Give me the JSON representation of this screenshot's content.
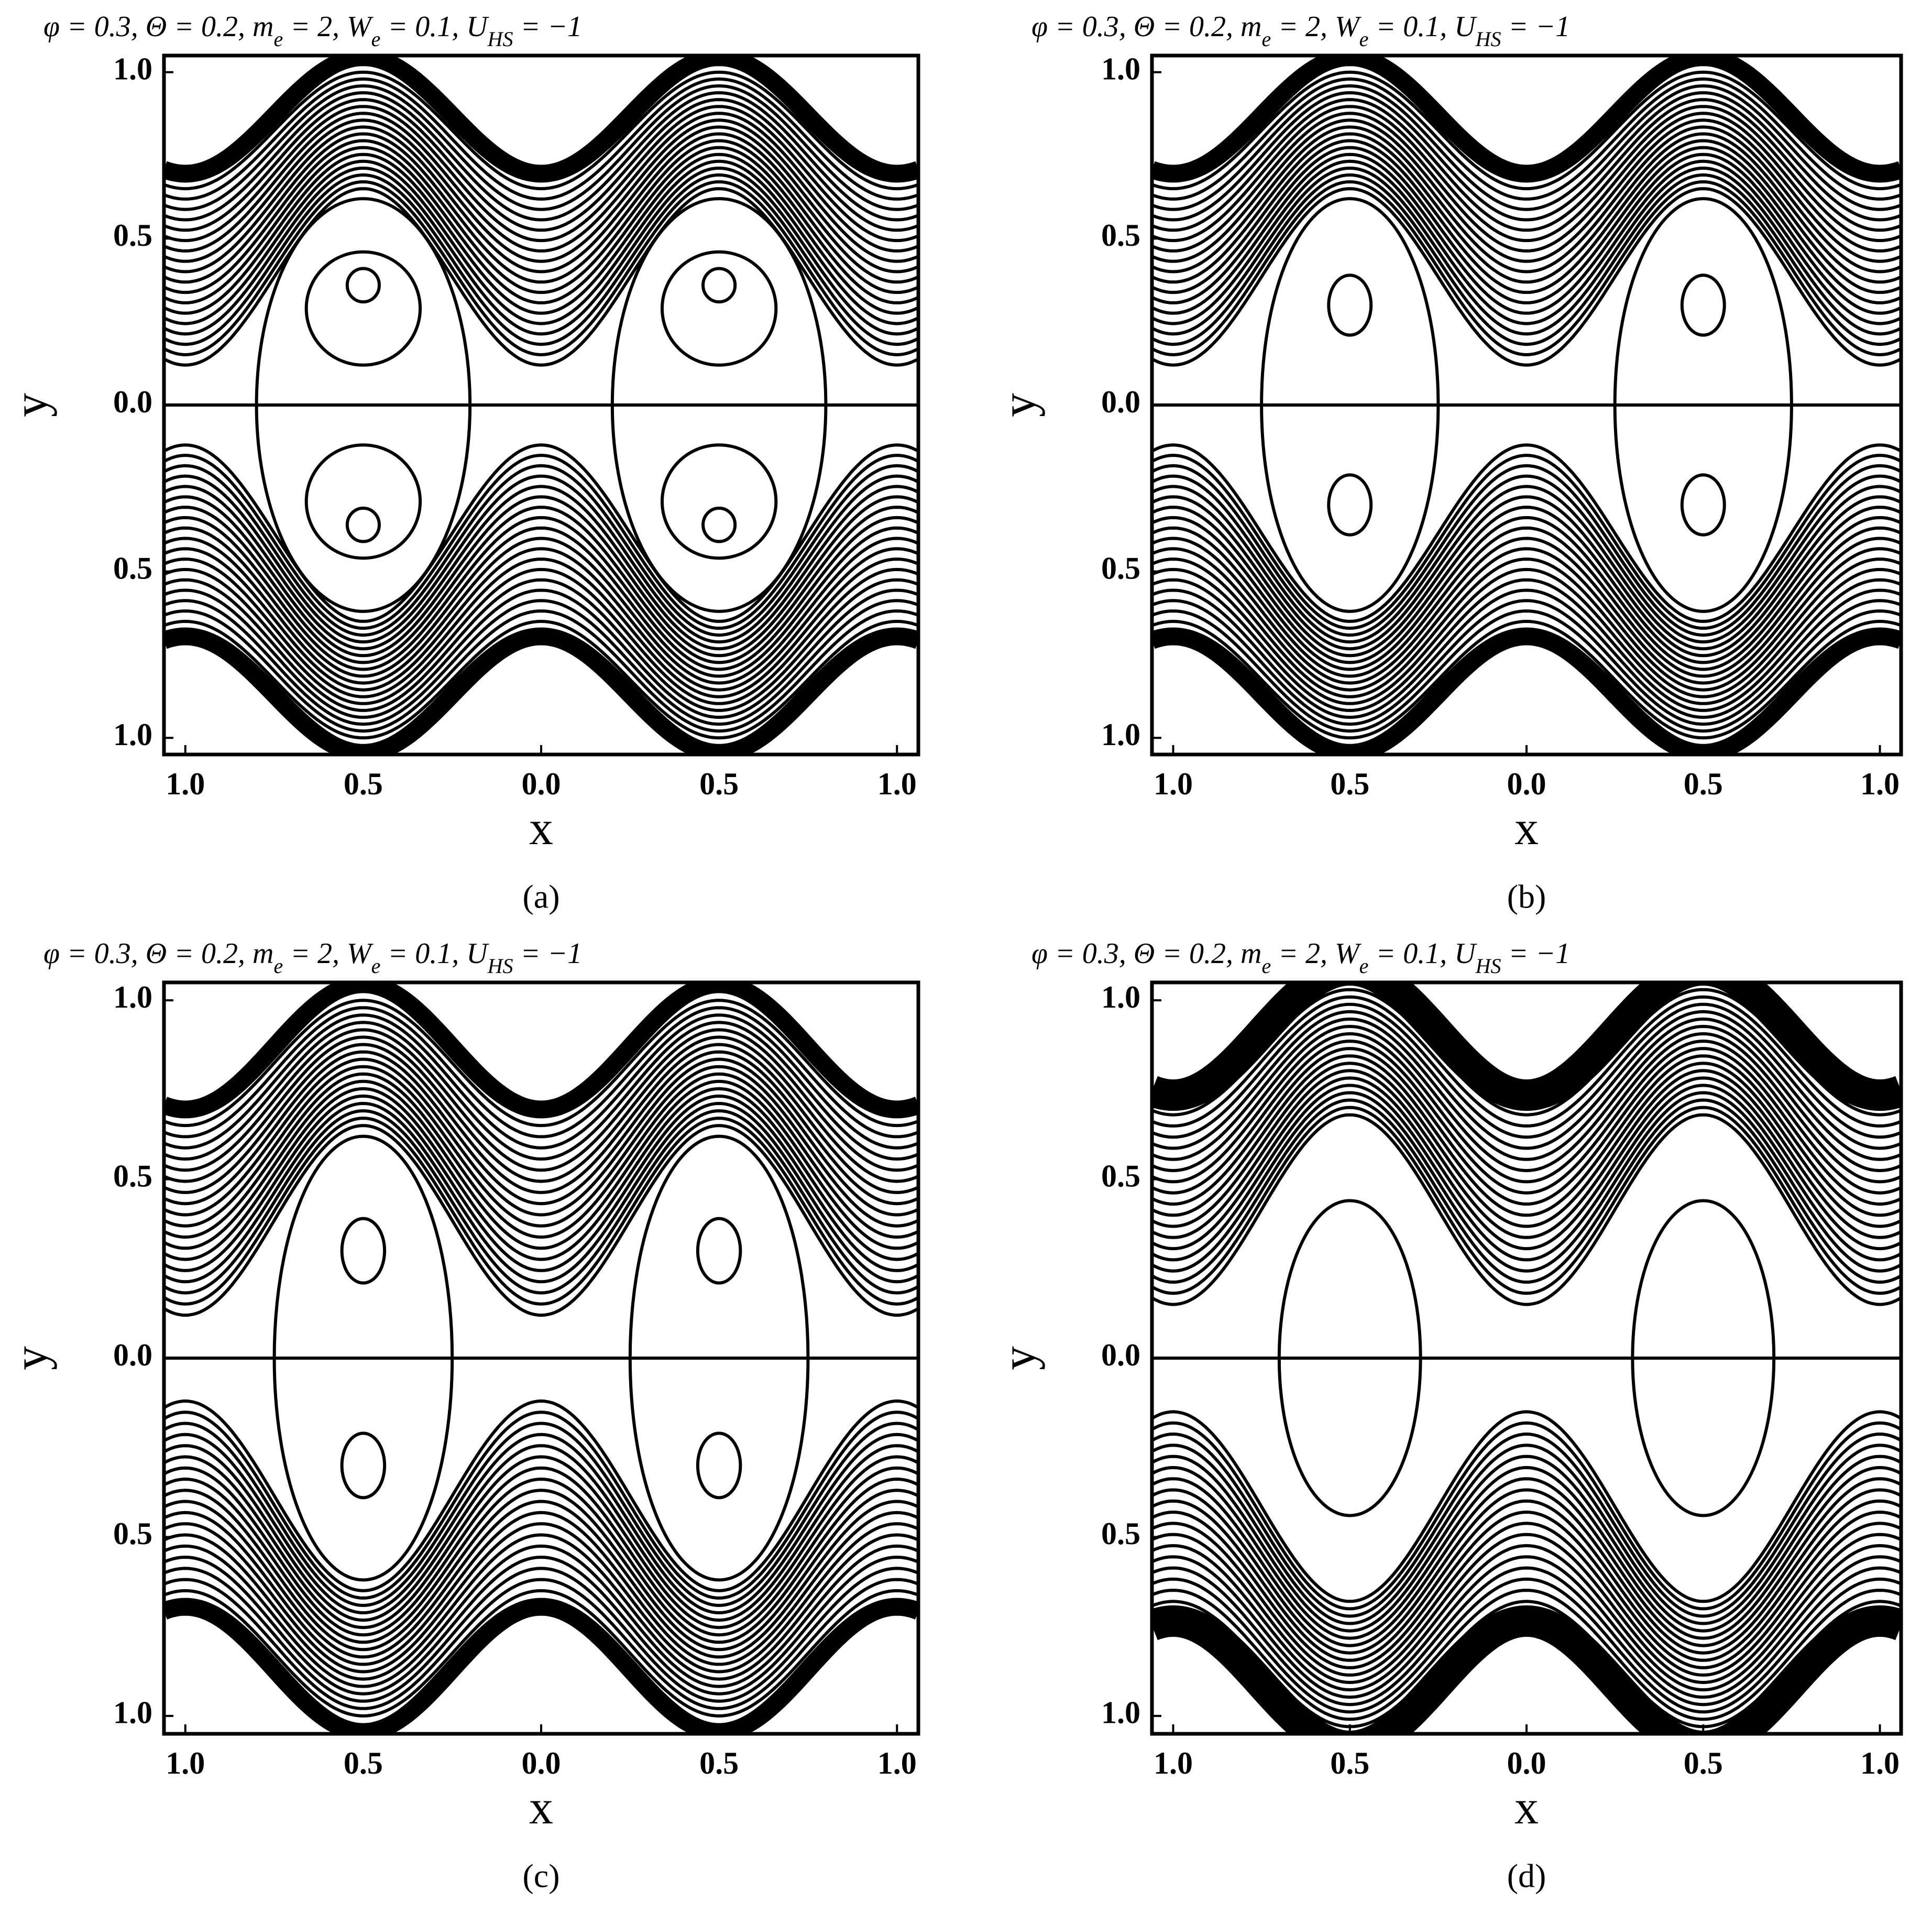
{
  "chart_data": [
    {
      "type": "contour",
      "label": "(a)",
      "title": [
        "φ = 0.3, Θ = 0.2, m",
        "e",
        " = 2, W",
        "e",
        " = 0.1, U",
        "HS",
        " = −1"
      ],
      "xlabel": "x",
      "ylabel": "y",
      "xlim": [
        -1.06,
        1.06
      ],
      "ylim": [
        -1.05,
        1.05
      ],
      "xticks": [
        {
          "value": -1,
          "label": "1.0"
        },
        {
          "value": -0.5,
          "label": "0.5"
        },
        {
          "value": 0,
          "label": "0.0"
        },
        {
          "value": 0.5,
          "label": "0.5"
        },
        {
          "value": 1,
          "label": "1.0"
        }
      ],
      "yticks": [
        {
          "value": -1,
          "label": "1.0"
        },
        {
          "value": -0.5,
          "label": "0.5"
        },
        {
          "value": 0,
          "label": "0.0"
        },
        {
          "value": 0.5,
          "label": "0.5"
        },
        {
          "value": 1,
          "label": "1.0"
        }
      ]
    },
    {
      "type": "contour",
      "label": "(b)",
      "title": [
        "φ = 0.3, Θ = 0.2, m",
        "e",
        " = 2, W",
        "e",
        " = 0.1, U",
        "HS",
        " = −1"
      ],
      "xlabel": "x",
      "ylabel": "y",
      "xlim": [
        -1.06,
        1.06
      ],
      "ylim": [
        -1.05,
        1.05
      ],
      "xticks": [
        {
          "value": -1,
          "label": "1.0"
        },
        {
          "value": -0.5,
          "label": "0.5"
        },
        {
          "value": 0,
          "label": "0.0"
        },
        {
          "value": 0.5,
          "label": "0.5"
        },
        {
          "value": 1,
          "label": "1.0"
        }
      ],
      "yticks": [
        {
          "value": -1,
          "label": "1.0"
        },
        {
          "value": -0.5,
          "label": "0.5"
        },
        {
          "value": 0,
          "label": "0.0"
        },
        {
          "value": 0.5,
          "label": "0.5"
        },
        {
          "value": 1,
          "label": "1.0"
        }
      ]
    },
    {
      "type": "contour",
      "label": "(c)",
      "title": [
        "φ = 0.3, Θ = 0.2, m",
        "e",
        " = 2, W",
        "e",
        " = 0.1, U",
        "HS",
        " = −1"
      ],
      "xlabel": "x",
      "ylabel": "y",
      "xlim": [
        -1.06,
        1.06
      ],
      "ylim": [
        -1.05,
        1.05
      ],
      "xticks": [
        {
          "value": -1,
          "label": "1.0"
        },
        {
          "value": -0.5,
          "label": "0.5"
        },
        {
          "value": 0,
          "label": "0.0"
        },
        {
          "value": 0.5,
          "label": "0.5"
        },
        {
          "value": 1,
          "label": "1.0"
        }
      ],
      "yticks": [
        {
          "value": -1,
          "label": "1.0"
        },
        {
          "value": -0.5,
          "label": "0.5"
        },
        {
          "value": 0,
          "label": "0.0"
        },
        {
          "value": 0.5,
          "label": "0.5"
        },
        {
          "value": 1,
          "label": "1.0"
        }
      ]
    },
    {
      "type": "contour",
      "label": "(d)",
      "title": [
        "φ = 0.3, Θ = 0.2, m",
        "e",
        " = 2, W",
        "e",
        " = 0.1, U",
        "HS",
        " = −1"
      ],
      "xlabel": "x",
      "ylabel": "y",
      "xlim": [
        -1.06,
        1.06
      ],
      "ylim": [
        -1.05,
        1.05
      ],
      "xticks": [
        {
          "value": -1,
          "label": "1.0"
        },
        {
          "value": -0.5,
          "label": "0.5"
        },
        {
          "value": 0,
          "label": "0.0"
        },
        {
          "value": 0.5,
          "label": "0.5"
        },
        {
          "value": 1,
          "label": "1.0"
        }
      ],
      "yticks": [
        {
          "value": -1,
          "label": "1.0"
        },
        {
          "value": -0.5,
          "label": "0.5"
        },
        {
          "value": 0,
          "label": "0.0"
        },
        {
          "value": 0.5,
          "label": "0.5"
        },
        {
          "value": 1,
          "label": "1.0"
        }
      ]
    }
  ]
}
